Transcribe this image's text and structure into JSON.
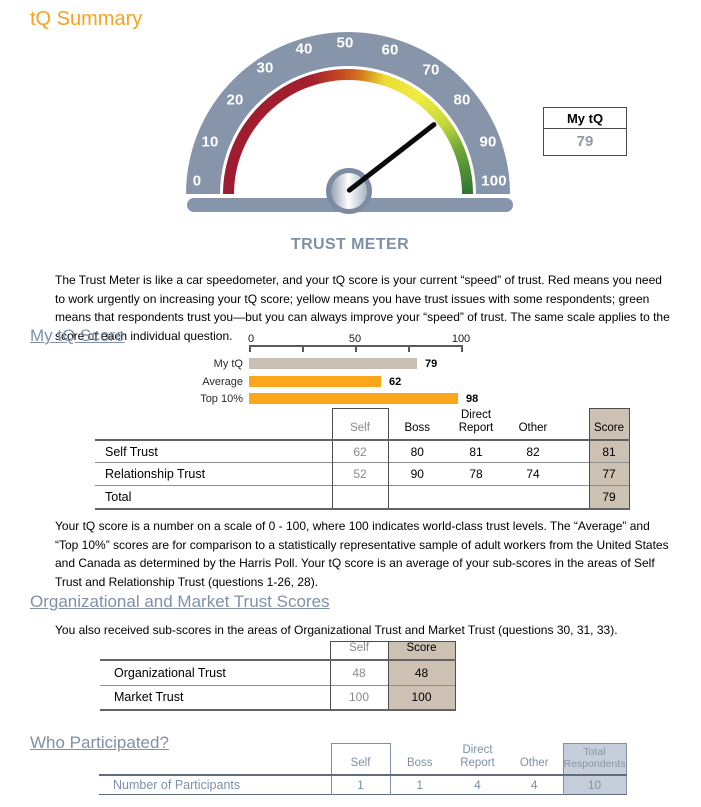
{
  "page_title": "tQ Summary",
  "colors": {
    "accent_orange": "#F8A21D",
    "slate_heading": "#8090A7",
    "gauge_ring": "#8795AB",
    "gauge_red": "#9E1B31",
    "gauge_yellow": "#F0EC41",
    "gauge_green": "#2F7434",
    "score_column_bg": "#CCC1B3",
    "total_respondents_bg": "#C5CEDA",
    "bar_tan": "#C9C0B3",
    "bar_orange": "#FBA61B"
  },
  "gauge": {
    "title": "TRUST METER",
    "value": 79,
    "tick_labels": [
      "0",
      "10",
      "20",
      "30",
      "40",
      "50",
      "60",
      "70",
      "80",
      "90",
      "100"
    ],
    "my_tq_box": {
      "label": "My tQ",
      "value": "79"
    }
  },
  "intro_text": "The Trust Meter is like a car speedometer, and your tQ score is your current “speed” of trust. Red means you need to work urgently on increasing your tQ score; yellow means you have trust issues with some respondents; green means that respondents trust you—but you can always improve your “speed” of trust. The same scale applies to the score of each individual question.",
  "my_tq_score_section": {
    "heading": "My tQ Score",
    "note": "Your tQ score is a number on a scale of 0 - 100, where 100 indicates world-class trust levels. The “Average” and “Top 10%” scores are for comparison to a statistically representative sample of adult workers from the United States and Canada as determined by the Harris Poll. Your tQ score is an average of your sub-scores in the areas of Self Trust and Relationship Trust (questions 1-26, 28)."
  },
  "chart_data": {
    "type": "bar",
    "orientation": "horizontal",
    "categories": [
      "My tQ",
      "Average",
      "Top 10%"
    ],
    "values": [
      79,
      62,
      98
    ],
    "value_labels": [
      "79",
      "62",
      "98"
    ],
    "bar_colors": [
      "#C9C0B3",
      "#FBA61B",
      "#FBA61B"
    ],
    "xlim": [
      0,
      100
    ],
    "x_tick_labels": [
      "0",
      "50",
      "100"
    ],
    "title": "",
    "xlabel": "",
    "ylabel": ""
  },
  "trust_table": {
    "headers": {
      "self": "Self",
      "boss": "Boss",
      "direct_report": "Direct\nReport",
      "other": "Other",
      "score": "Score"
    },
    "rows": [
      {
        "label": "Self Trust",
        "self": "62",
        "boss": "80",
        "direct_report": "81",
        "other": "82",
        "score": "81"
      },
      {
        "label": "Relationship Trust",
        "self": "52",
        "boss": "90",
        "direct_report": "78",
        "other": "74",
        "score": "77"
      },
      {
        "label": "Total",
        "self": "",
        "boss": "",
        "direct_report": "",
        "other": "",
        "score": "79"
      }
    ]
  },
  "org_market_section": {
    "heading": "Organizational and Market Trust Scores",
    "text": "You also received sub-scores in the areas of Organizational Trust and Market Trust (questions 30, 31, 33).",
    "table": {
      "headers": {
        "self": "Self",
        "score": "Score"
      },
      "rows": [
        {
          "label": "Organizational Trust",
          "self": "48",
          "score": "48"
        },
        {
          "label": "Market Trust",
          "self": "100",
          "score": "100"
        }
      ]
    }
  },
  "participation_section": {
    "heading": "Who Participated?",
    "table": {
      "headers": {
        "self": "Self",
        "boss": "Boss",
        "direct_report": "Direct\nReport",
        "other": "Other",
        "total": "Total\nRespondents"
      },
      "row": {
        "label": "Number of Participants",
        "self": "1",
        "boss": "1",
        "direct_report": "4",
        "other": "4",
        "total": "10"
      }
    }
  }
}
